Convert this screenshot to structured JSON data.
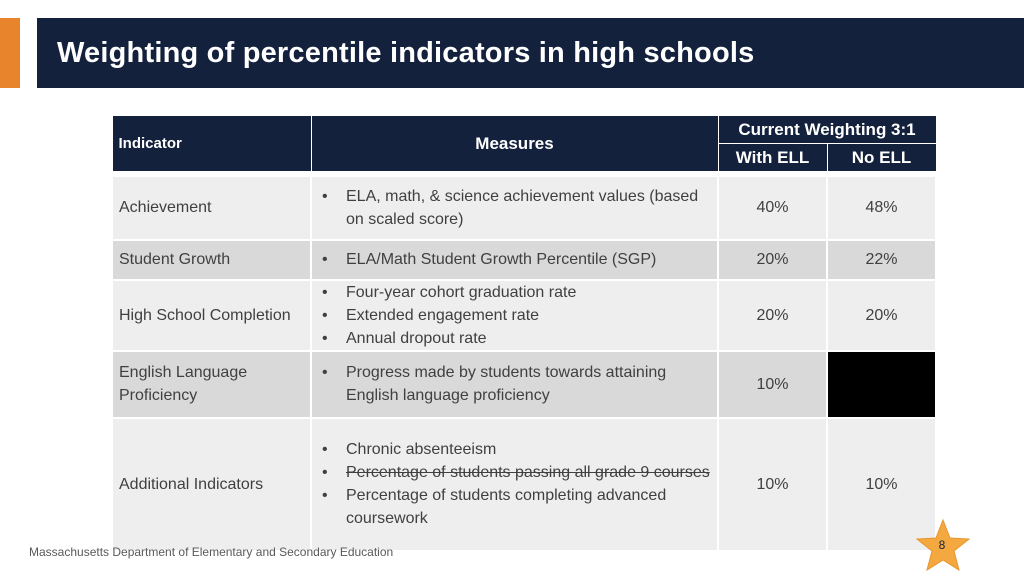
{
  "title": "Weighting of percentile indicators in high schools",
  "table": {
    "header_indicator": "Indicator",
    "header_measures": "Measures",
    "header_weighting": "Current Weighting 3:1",
    "header_with_ell": "With ELL",
    "header_no_ell": "No ELL",
    "rows": [
      {
        "indicator": "Achievement",
        "measures": [
          "ELA, math, & science achievement values (based on scaled score)"
        ],
        "with_ell": "40%",
        "no_ell": "48%"
      },
      {
        "indicator": "Student Growth",
        "measures": [
          "ELA/Math Student Growth Percentile (SGP)"
        ],
        "with_ell": "20%",
        "no_ell": "22%"
      },
      {
        "indicator": "High School Completion",
        "measures": [
          "Four-year cohort graduation rate",
          "Extended engagement rate",
          "Annual dropout rate"
        ],
        "with_ell": "20%",
        "no_ell": "20%"
      },
      {
        "indicator": "English Language Proficiency",
        "measures": [
          "Progress made by students towards attaining English language proficiency"
        ],
        "with_ell": "10%",
        "no_ell": ""
      },
      {
        "indicator": "Additional Indicators",
        "measures": [
          "Chronic absenteeism",
          "Percentage of students passing all grade 9 courses",
          "Percentage of students completing advanced coursework"
        ],
        "with_ell": "10%",
        "no_ell": "10%"
      }
    ]
  },
  "footer": "Massachusetts Department of Elementary and Secondary Education",
  "page_number": "8",
  "colors": {
    "navy": "#14213d",
    "orange": "#e8842c",
    "row_light": "#eeeeee",
    "row_dark": "#d9d9d9",
    "star": "#f4a940"
  }
}
